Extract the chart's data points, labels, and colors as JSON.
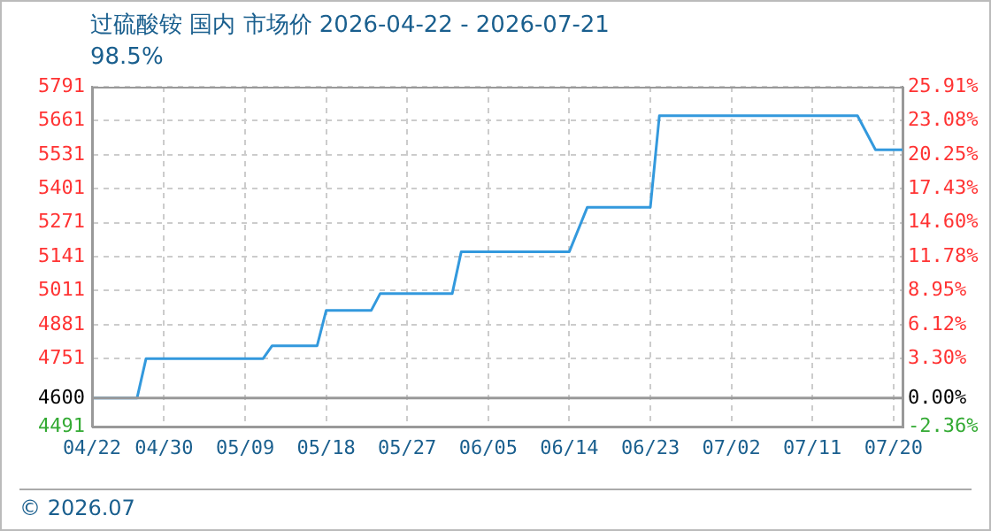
{
  "chart_data": {
    "type": "line",
    "title": "过硫酸铵 国内 市场价 2026-04-22 - 2026-07-21",
    "subtitle": "98.5%",
    "x": [
      "--04-22",
      "--04-27",
      "--04-28",
      "--05-11",
      "--05-12",
      "--05-17",
      "--05-18",
      "--05-23",
      "--05-24",
      "--06-01",
      "--06-02",
      "--06-14",
      "--06-16",
      "--06-23",
      "--06-24",
      "--07-16",
      "--07-18",
      "--07-21"
    ],
    "series": [
      {
        "color": "#3399dd",
        "values": [
          4600,
          4600,
          4751,
          4751,
          4800,
          4800,
          4935,
          4935,
          5000,
          5000,
          5160,
          5160,
          5330,
          5330,
          5680,
          5680,
          5550,
          5550
        ]
      }
    ],
    "xlim": [
      "--04-22",
      "--07-21"
    ],
    "xticks": [
      {
        "value": "--04-22",
        "label": "04/22"
      },
      {
        "value": "--04-30",
        "label": "04/30"
      },
      {
        "value": "--05-09",
        "label": "05/09"
      },
      {
        "value": "--05-18",
        "label": "05/18"
      },
      {
        "value": "--05-27",
        "label": "05/27"
      },
      {
        "value": "--06-05",
        "label": "06/05"
      },
      {
        "value": "--06-14",
        "label": "06/14"
      },
      {
        "value": "--06-23",
        "label": "06/23"
      },
      {
        "value": "--07-02",
        "label": "07/02"
      },
      {
        "value": "--07-11",
        "label": "07/11"
      },
      {
        "value": "--07-20",
        "label": "07/20"
      }
    ],
    "ylim": [
      4491,
      5791
    ],
    "yticks": [
      4491,
      4600,
      4751,
      4881,
      5011,
      5141,
      5271,
      5401,
      5531,
      5661,
      5791
    ],
    "y2lim": [
      -2.36,
      25.91
    ],
    "y2ticks": [
      {
        "value": -2.36,
        "label": "-2.36%"
      },
      {
        "value": 0,
        "label": "0.00%"
      },
      {
        "value": 3.3,
        "label": "3.30%"
      },
      {
        "value": 6.12,
        "label": "6.12%"
      },
      {
        "value": 8.95,
        "label": "8.95%"
      },
      {
        "value": 11.78,
        "label": "11.78%"
      },
      {
        "value": 14.6,
        "label": "14.60%"
      },
      {
        "value": 17.43,
        "label": "17.43%"
      },
      {
        "value": 20.25,
        "label": "20.25%"
      },
      {
        "value": 23.08,
        "label": "23.08%"
      },
      {
        "value": 25.91,
        "label": "25.91%"
      }
    ],
    "ref_lines": [
      {
        "axis": "y",
        "value": 4600,
        "color": "#999999",
        "line_style": "solid"
      }
    ],
    "grid": true,
    "legend": false,
    "marker": "none",
    "line_style": "solid",
    "annotations": [
      "© 2026.07"
    ]
  }
}
